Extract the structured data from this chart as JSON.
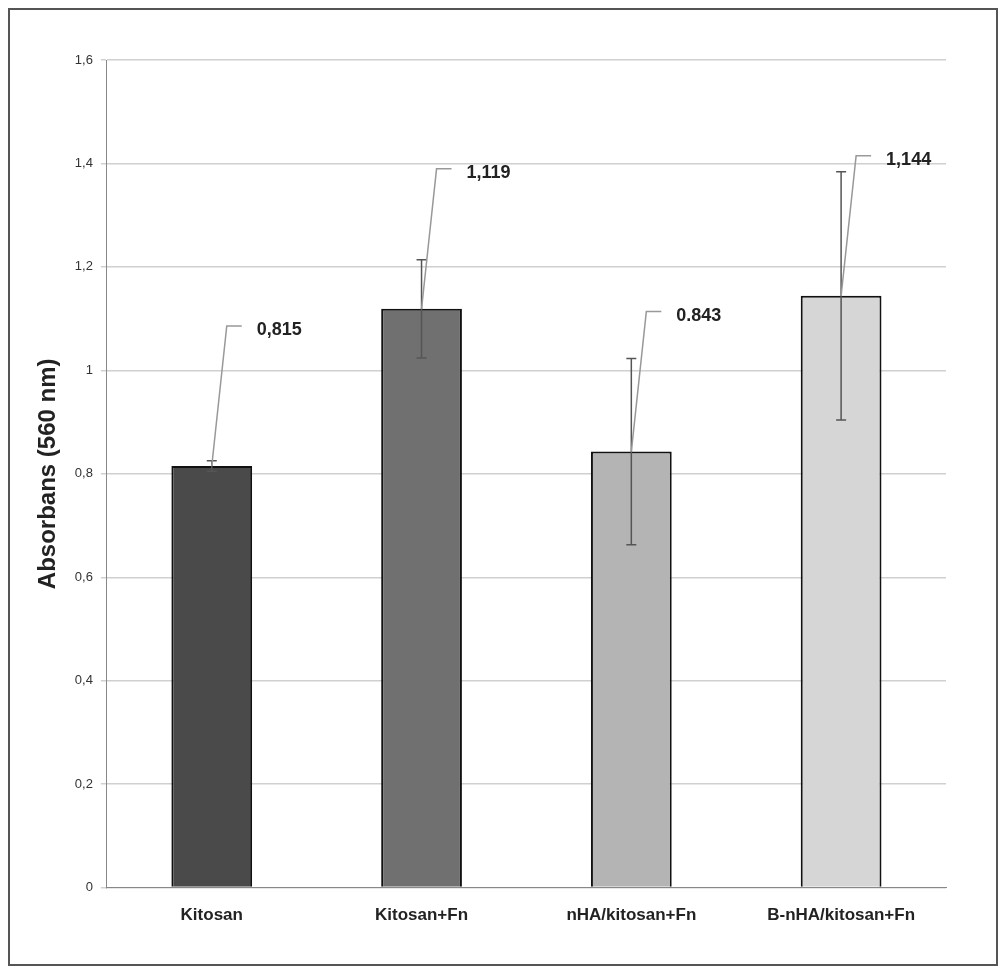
{
  "chart_data": {
    "type": "bar",
    "ylabel": "Absorbans (560 nm)",
    "categories": [
      "Kitosan",
      "Kitosan+Fn",
      "nHA/kitosan+Fn",
      "B-nHA/kitosan+Fn"
    ],
    "values": [
      0.815,
      1.119,
      0.843,
      1.144
    ],
    "colors": [
      "#4a4a4a",
      "#707070",
      "#b4b4b4",
      "#d6d6d6"
    ],
    "errors": [
      0.01,
      0.095,
      0.18,
      0.24
    ],
    "value_labels": [
      "0,815",
      "1,119",
      "0.843",
      "1,144"
    ],
    "ylim": [
      0,
      1.6
    ],
    "yticks": [
      0,
      {
        "value": 0.2,
        "label": "0,2"
      },
      {
        "value": 0.4,
        "label": "0,4"
      },
      {
        "value": 0.6,
        "label": "0,6"
      },
      {
        "value": 0.8,
        "label": "0,8"
      },
      1,
      {
        "value": 1.2,
        "label": "1,2"
      },
      {
        "value": 1.4,
        "label": "1,4"
      },
      {
        "value": 1.6,
        "label": "1,6"
      }
    ],
    "grid": "y",
    "legend": false
  }
}
